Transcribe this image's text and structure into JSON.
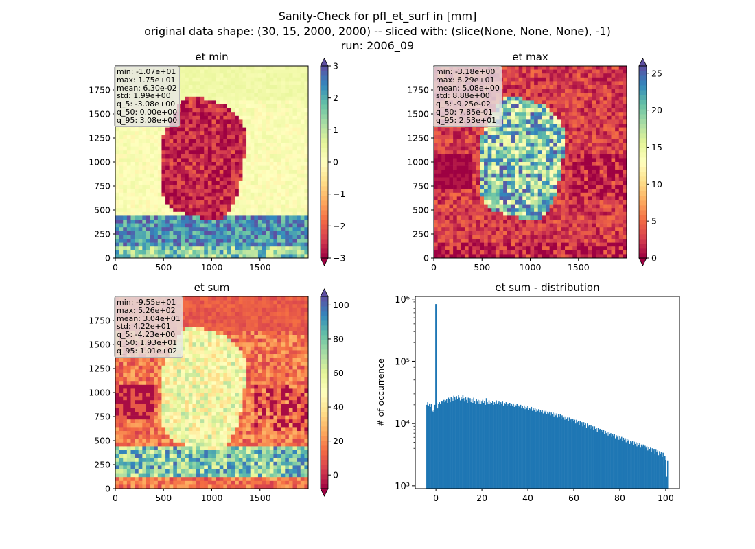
{
  "figure": {
    "title_lines": [
      "Sanity-Check for pfl_et_surf in [mm]",
      "original data shape: (30, 15, 2000, 2000) -- sliced with: (slice(None, None, None), -1)",
      "run: 2006_09"
    ]
  },
  "chart_data": [
    {
      "type": "heatmap",
      "title": "et min",
      "colormap": "Spectral",
      "xlim": [
        0,
        2000
      ],
      "ylim": [
        0,
        2000
      ],
      "xticks": [
        0,
        500,
        1000,
        1500
      ],
      "yticks": [
        0,
        250,
        500,
        750,
        1000,
        1250,
        1500,
        1750
      ],
      "colorbar": {
        "range": [
          -3,
          3
        ],
        "ticks": [
          "3",
          "2",
          "1",
          "0",
          "−1",
          "−2",
          "−3"
        ],
        "extend": "both"
      },
      "stats": [
        "min: -1.07e+01",
        "max: 1.75e+01",
        "mean: 6.30e-02",
        "std: 1.99e+00",
        "q_5: -3.08e+00",
        "q_50: 0.00e+00",
        "q_95: 3.08e+00"
      ]
    },
    {
      "type": "heatmap",
      "title": "et max",
      "colormap": "Spectral",
      "xlim": [
        0,
        2000
      ],
      "ylim": [
        0,
        2000
      ],
      "xticks": [
        0,
        500,
        1000,
        1500
      ],
      "yticks": [
        0,
        250,
        500,
        750,
        1000,
        1250,
        1500,
        1750
      ],
      "colorbar": {
        "range": [
          0,
          26
        ],
        "ticks": [
          "25",
          "20",
          "15",
          "10",
          "5",
          "0"
        ],
        "extend": "both"
      },
      "stats": [
        "min: -3.18e+00",
        "max: 6.29e+01",
        "mean: 5.08e+00",
        "std: 8.88e+00",
        "q_5: -9.25e-02",
        "q_50: 7.85e-01",
        "q_95: 2.53e+01"
      ]
    },
    {
      "type": "heatmap",
      "title": "et sum",
      "colormap": "Spectral",
      "xlim": [
        0,
        2000
      ],
      "ylim": [
        0,
        2000
      ],
      "xticks": [
        0,
        500,
        1000,
        1500
      ],
      "yticks": [
        0,
        250,
        500,
        750,
        1000,
        1250,
        1500,
        1750
      ],
      "colorbar": {
        "range": [
          -8,
          105
        ],
        "ticks": [
          "100",
          "80",
          "60",
          "40",
          "20",
          "0"
        ],
        "extend": "both"
      },
      "stats": [
        "min: -9.55e+01",
        "max: 5.26e+02",
        "mean: 3.04e+01",
        "std: 4.22e+01",
        "q_5: -4.23e+00",
        "q_50: 1.93e+01",
        "q_95: 1.01e+02"
      ]
    },
    {
      "type": "bar",
      "title": "et sum - distribution",
      "ylabel": "# of occurrence",
      "yscale": "log",
      "xlim": [
        -9,
        106
      ],
      "ylim": [
        900,
        1100000
      ],
      "xticks": [
        0,
        20,
        40,
        60,
        80,
        100
      ],
      "ytick_labels": [
        "10³",
        "10⁴",
        "10⁵",
        "10⁶"
      ],
      "color": "#1f77b4",
      "spike": {
        "x": 0,
        "count": 830000
      },
      "bins_x_range": [
        -4.2,
        101
      ],
      "bins_count": [
        20000,
        22000,
        19500,
        21000,
        18500,
        20500,
        16000,
        15500,
        16500,
        20000,
        19000,
        21500,
        17500,
        20500,
        22000,
        21000,
        23000,
        22500,
        20000,
        24000,
        22000,
        23500,
        25000,
        21500,
        26000,
        24500,
        22000,
        27000,
        25500,
        23000,
        28000,
        26500,
        24000,
        27500,
        25000,
        29000,
        26000,
        23500,
        27000,
        24500,
        28500,
        25500,
        22500,
        27000,
        24000,
        21500,
        26000,
        23000,
        25500,
        22000,
        24500,
        21500,
        26000,
        23000,
        20500,
        25000,
        22500,
        24000,
        21000,
        23500,
        20500,
        22500,
        24000,
        21500,
        23000,
        20000,
        25500,
        22000,
        21000,
        23500,
        20500,
        22000,
        21500,
        23000,
        20000,
        22000,
        21000,
        23500,
        20500,
        21500,
        22500,
        20000,
        22000,
        21000,
        22500,
        19500,
        21500,
        20500,
        22000,
        19500,
        21000,
        20000,
        21500,
        19000,
        20500,
        19500,
        21000,
        18500,
        20000,
        19000,
        20500,
        18000,
        19500,
        18500,
        20000,
        17500,
        19000,
        18000,
        19500,
        17000,
        18500,
        17500,
        19000,
        16500,
        18000,
        17000,
        18500,
        16000,
        17500,
        16500,
        17500,
        15500,
        17000,
        16000,
        17000,
        15000,
        16500,
        15500,
        16500,
        14500,
        16000,
        15000,
        16000,
        14000,
        15500,
        14500,
        15500,
        13500,
        15000,
        14000,
        15000,
        13000,
        14500,
        13500,
        14500,
        12500,
        14000,
        13000,
        14000,
        12000,
        13500,
        12500,
        13000,
        11500,
        13000,
        12000,
        12500,
        11000,
        12500,
        11500,
        12000,
        10500,
        12000,
        11000,
        11500,
        10000,
        11500,
        10500,
        11000,
        9500,
        11000,
        10000,
        10500,
        9000,
        10500,
        9500,
        10000,
        8600,
        10000,
        9000,
        9500,
        8200,
        9500,
        8600,
        9000,
        7800,
        9000,
        8200,
        8600,
        7400,
        8500,
        7800,
        8200,
        7000,
        8000,
        7400,
        7800,
        6700,
        7600,
        7000,
        7400,
        6400,
        7200,
        6700,
        7000,
        6100,
        6800,
        6400,
        6700,
        5800,
        6500,
        6100,
        6400,
        5500,
        6200,
        5800,
        6100,
        5200,
        5900,
        5500,
        5800,
        5000,
        5600,
        5200,
        5500,
        4700,
        5300,
        5000,
        5200,
        4500,
        5100,
        4700,
        5000,
        4300,
        4800,
        4500,
        4800,
        4100,
        4600,
        4300,
        4600,
        3900,
        4400,
        4100,
        4300,
        3700,
        4200,
        3900,
        4100,
        3500,
        4000,
        3700,
        3900,
        3300,
        3800,
        3500,
        3700,
        3100,
        3600,
        3300,
        3500,
        2900,
        3400,
        2100,
        3000,
        2600,
        1400,
        2500
      ]
    }
  ]
}
